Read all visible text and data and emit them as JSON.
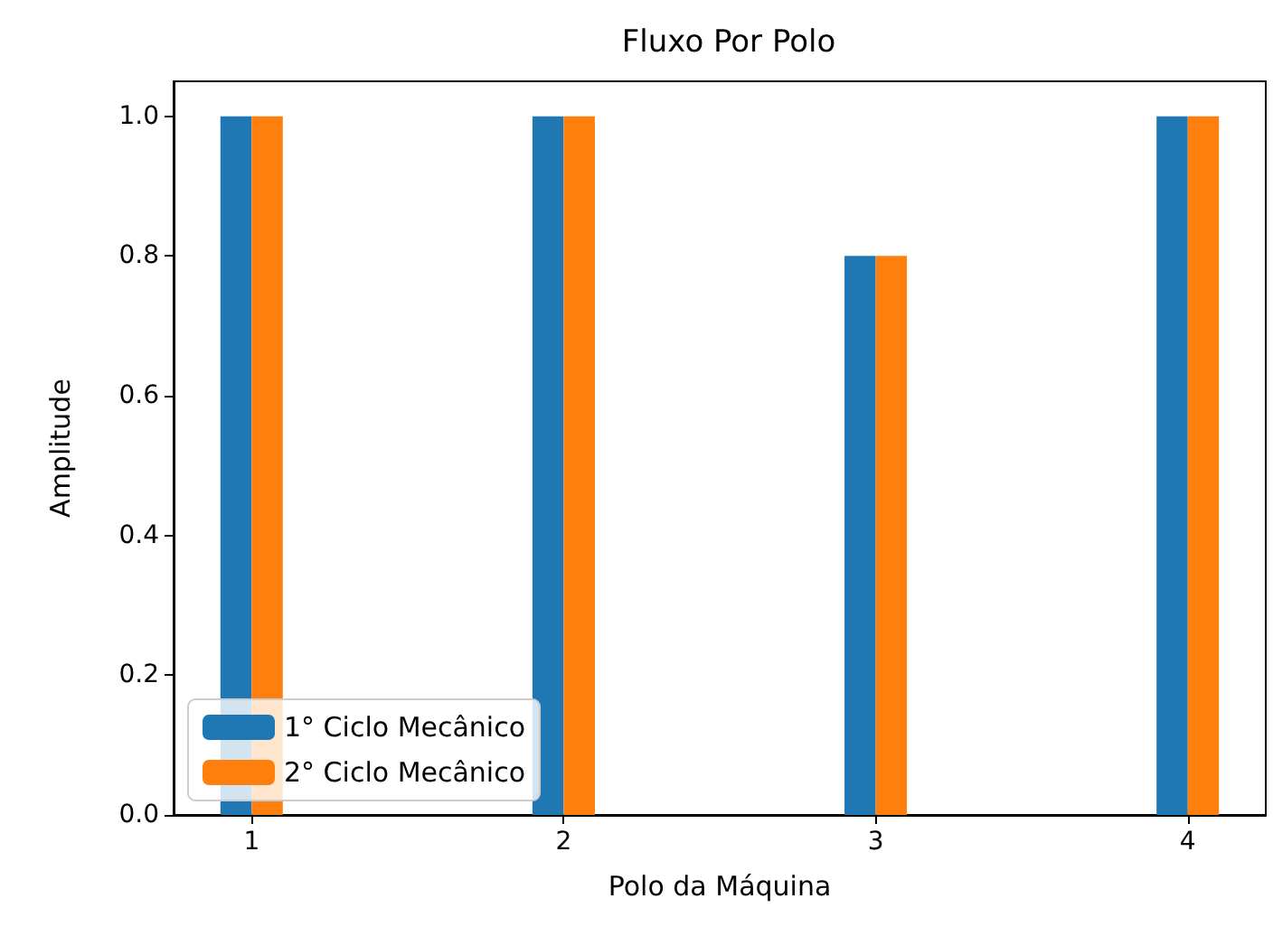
{
  "chart_data": {
    "type": "bar",
    "title": "Fluxo Por Polo",
    "xlabel": "Polo da Máquina",
    "ylabel": "Amplitude",
    "x": [
      1,
      2,
      3,
      4
    ],
    "series": [
      {
        "name": "1° Ciclo Mecânico",
        "color": "#1f77b4",
        "values": [
          1.0,
          1.0,
          0.8,
          1.0
        ]
      },
      {
        "name": "2° Ciclo Mecânico",
        "color": "#ff7f0e",
        "values": [
          1.0,
          1.0,
          0.8,
          1.0
        ]
      }
    ],
    "xlim": [
      0.75,
      4.25
    ],
    "xticks": [
      1,
      2,
      3,
      4
    ],
    "ylim": [
      0,
      1.05
    ],
    "yticks": [
      {
        "value": 0,
        "label": "0.0"
      },
      {
        "value": 0.2,
        "label": "0.2"
      },
      {
        "value": 0.4,
        "label": "0.4"
      },
      {
        "value": 0.6,
        "label": "0.6"
      },
      {
        "value": 0.8,
        "label": "0.8"
      },
      {
        "value": 1,
        "label": "1.0"
      }
    ],
    "grid": false,
    "legend": "bottom left"
  }
}
